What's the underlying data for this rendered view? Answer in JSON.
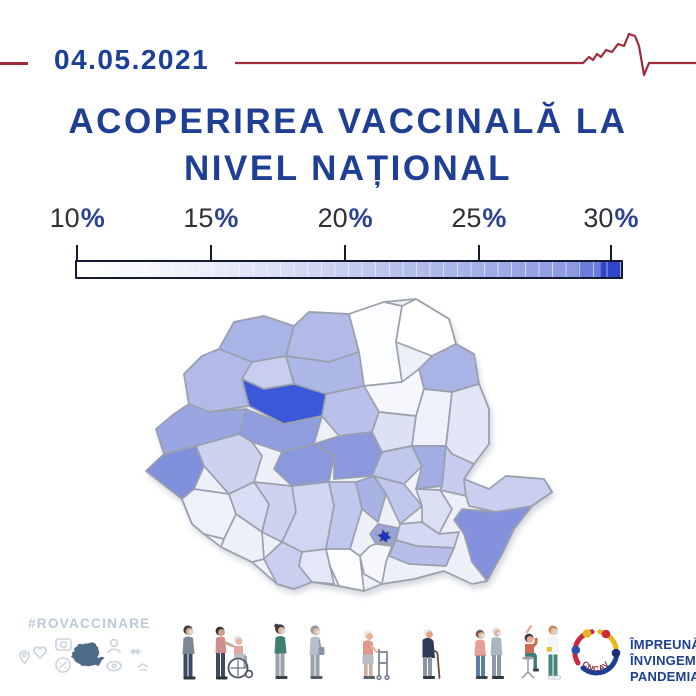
{
  "header": {
    "date": "04.05.2021",
    "line_color": "#9e2b3a"
  },
  "title": {
    "line1": "ACOPERIREA VACCINALĂ LA",
    "line2": "NIVEL NAȚIONAL",
    "color": "#1e3f93"
  },
  "legend": {
    "labels": [
      {
        "value": "10",
        "unit": "%"
      },
      {
        "value": "15",
        "unit": "%"
      },
      {
        "value": "20",
        "unit": "%"
      },
      {
        "value": "25",
        "unit": "%"
      },
      {
        "value": "30",
        "unit": "%"
      }
    ],
    "tick_positions_pct": [
      0.4,
      24.8,
      49.3,
      73.7,
      97.8
    ],
    "gradient": [
      [
        0,
        "#ffffff"
      ],
      [
        12,
        "#f7f8fd"
      ],
      [
        25,
        "#e9ecf9"
      ],
      [
        38,
        "#d8def5"
      ],
      [
        50,
        "#c5cdf0"
      ],
      [
        62,
        "#b3bdeb"
      ],
      [
        75,
        "#a3aee7"
      ],
      [
        85,
        "#95a1e3"
      ],
      [
        92,
        "#8b97e0"
      ],
      [
        92.4,
        "#6b7cda"
      ],
      [
        96.2,
        "#6b7cda"
      ],
      [
        96.4,
        "#2f46cc"
      ],
      [
        100,
        "#2f46cc"
      ]
    ]
  },
  "map": {
    "stroke": "#9aa0ac",
    "county_fills": {
      "satu-mare": "#a8b3e6",
      "maramures": "#b2bbe8",
      "suceava": "#fcfdff",
      "botosani": "#ffffff",
      "iasi": "#a9b4e6",
      "neamt": "#f6f7fc",
      "bistrita-nasaud": "#adb7e7",
      "salaj": "#c7ceef",
      "bihor": "#b1bae8",
      "cluj": "#3c58d8",
      "mures": "#b9c1ea",
      "harghita": "#dde1f5",
      "bacau": "#eef1fa",
      "vaslui": "#e2e6f7",
      "arad": "#9aa6e2",
      "alba": "#909ddf",
      "hunedoara": "#ccd2f0",
      "timis": "#8090dc",
      "sibiu": "#8a98de",
      "brasov": "#8b98de",
      "covasna": "#bfc7ed",
      "vrancea": "#a2ade4",
      "galati": "#c5ccee",
      "caras-severin": "#eff1fa",
      "gorj": "#d9def4",
      "valcea": "#ccd2f0",
      "arges": "#d0d6f2",
      "dambovita": "#c0c8ed",
      "prahova": "#a8b2e5",
      "buzau": "#bfc7ec",
      "braila": "#dce0f5",
      "tulcea": "#c8cfef",
      "constanta": "#8492dd",
      "ialomita": "#d3d8f3",
      "calarasi": "#b6bfe9",
      "ilfov": "#97a3e2",
      "bucuresti": "#1b35bd",
      "giurgiu": "#f6f7fd",
      "teleorman": "#fdfdff",
      "olt": "#e3e7f7",
      "dolj": "#c9d0ef",
      "mehedinti": "#eef0f9"
    }
  },
  "footer": {
    "hashtag": "#ROVACCINARE",
    "logo_text": "CNCAV",
    "slogan": [
      "ÎMPREUNĂ",
      "ÎNVINGEM",
      "PANDEMIA"
    ],
    "logo_colors": {
      "red": "#c8293c",
      "yellow": "#e7b620",
      "blue": "#1d3f94",
      "navy": "#16307a"
    }
  }
}
